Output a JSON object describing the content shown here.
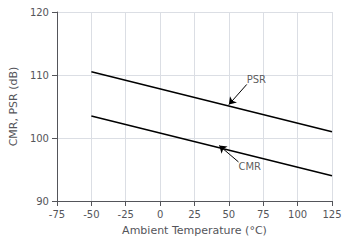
{
  "chart_data": {
    "type": "line",
    "xlabel": "Ambient Temperature (°C)",
    "ylabel": "CMR, PSR (dB)",
    "xlim": [
      -75,
      125
    ],
    "ylim": [
      90,
      120
    ],
    "xticks": [
      -75,
      -50,
      -25,
      0,
      25,
      50,
      75,
      100,
      125
    ],
    "yticks": [
      90,
      100,
      110,
      120
    ],
    "grid": true,
    "x": [
      -50,
      125
    ],
    "series": [
      {
        "values": [
          110.5,
          101.0
        ],
        "color": "#000000"
      },
      {
        "values": [
          103.5,
          94.0
        ],
        "color": "#000000"
      }
    ],
    "annotations": [
      {
        "text": "PSR",
        "xy": [
          50,
          105.3
        ],
        "xytext": [
          63,
          108.5
        ],
        "color": "#000000"
      },
      {
        "text": "CMR",
        "xy": [
          43,
          98.8
        ],
        "xytext": [
          57,
          96.2
        ],
        "color": "#000000"
      }
    ]
  }
}
